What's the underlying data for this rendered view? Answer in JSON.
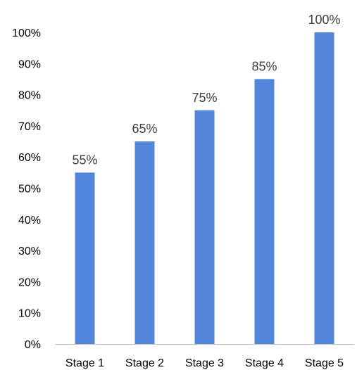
{
  "chart_data": {
    "type": "bar",
    "title": "",
    "xlabel": "",
    "ylabel": "",
    "categories": [
      "Stage 1",
      "Stage 2",
      "Stage 3",
      "Stage 4",
      "Stage 5"
    ],
    "values": [
      55,
      65,
      75,
      85,
      100
    ],
    "data_labels": [
      "55%",
      "65%",
      "75%",
      "85%",
      "100%"
    ],
    "ylim": [
      0,
      100
    ],
    "yticks": [
      0,
      10,
      20,
      30,
      40,
      50,
      60,
      70,
      80,
      90,
      100
    ],
    "ytick_labels": [
      "0%",
      "10%",
      "20%",
      "30%",
      "40%",
      "50%",
      "60%",
      "70%",
      "80%",
      "90%",
      "100%"
    ],
    "grid": false,
    "legend": "none",
    "bar_color": "#5186DA",
    "axis_color": "#BFBFBF"
  }
}
